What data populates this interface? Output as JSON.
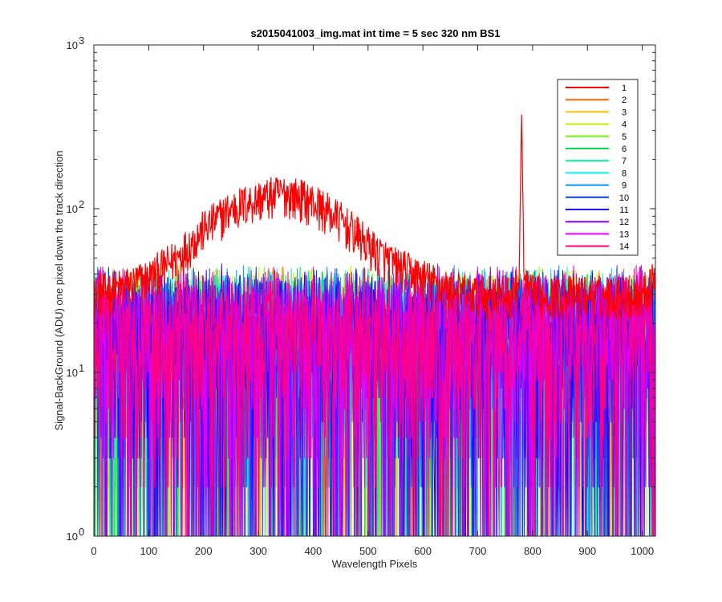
{
  "chart_data": {
    "type": "line",
    "title": "s2015041003_img.mat int time = 5 sec  320 nm BS1",
    "xlabel": "Wavelength Pixels",
    "ylabel": "Signal-BackGround (ADU) one pixel down the track direction",
    "xlim": [
      0,
      1024
    ],
    "ylim": [
      1,
      1000
    ],
    "yscale": "log",
    "xticks": [
      "0",
      "100",
      "200",
      "300",
      "400",
      "500",
      "600",
      "700",
      "800",
      "900",
      "1000"
    ],
    "yticks": [
      {
        "base": "10",
        "exp": "0"
      },
      {
        "base": "10",
        "exp": "1"
      },
      {
        "base": "10",
        "exp": "2"
      },
      {
        "base": "10",
        "exp": "3"
      }
    ],
    "legend_position": "top-right",
    "grid": false,
    "series": [
      {
        "name": "1",
        "color": "#ff0000",
        "envelope": {
          "x": [
            0,
            50,
            100,
            150,
            200,
            250,
            300,
            350,
            400,
            450,
            500,
            550,
            600,
            650,
            700,
            760,
            775,
            780,
            785,
            800,
            850,
            900,
            950,
            1000,
            1024
          ],
          "y": [
            30,
            33,
            38,
            50,
            75,
            100,
            115,
            125,
            110,
            85,
            60,
            45,
            38,
            32,
            30,
            30,
            34,
            400,
            34,
            30,
            30,
            30,
            30,
            30,
            40
          ]
        }
      },
      {
        "name": "2",
        "color": "#ff6a00"
      },
      {
        "name": "3",
        "color": "#ffbf00"
      },
      {
        "name": "4",
        "color": "#c8f000"
      },
      {
        "name": "5",
        "color": "#6aff00"
      },
      {
        "name": "6",
        "color": "#00e050"
      },
      {
        "name": "7",
        "color": "#00f0a0"
      },
      {
        "name": "8",
        "color": "#00f0f0"
      },
      {
        "name": "9",
        "color": "#0096ff"
      },
      {
        "name": "10",
        "color": "#0040ff"
      },
      {
        "name": "11",
        "color": "#1a00ff"
      },
      {
        "name": "12",
        "color": "#8a00ff"
      },
      {
        "name": "13",
        "color": "#e000ff"
      },
      {
        "name": "14",
        "color": "#ff0080"
      }
    ],
    "noise_series_typical_range": [
      1,
      45
    ]
  }
}
